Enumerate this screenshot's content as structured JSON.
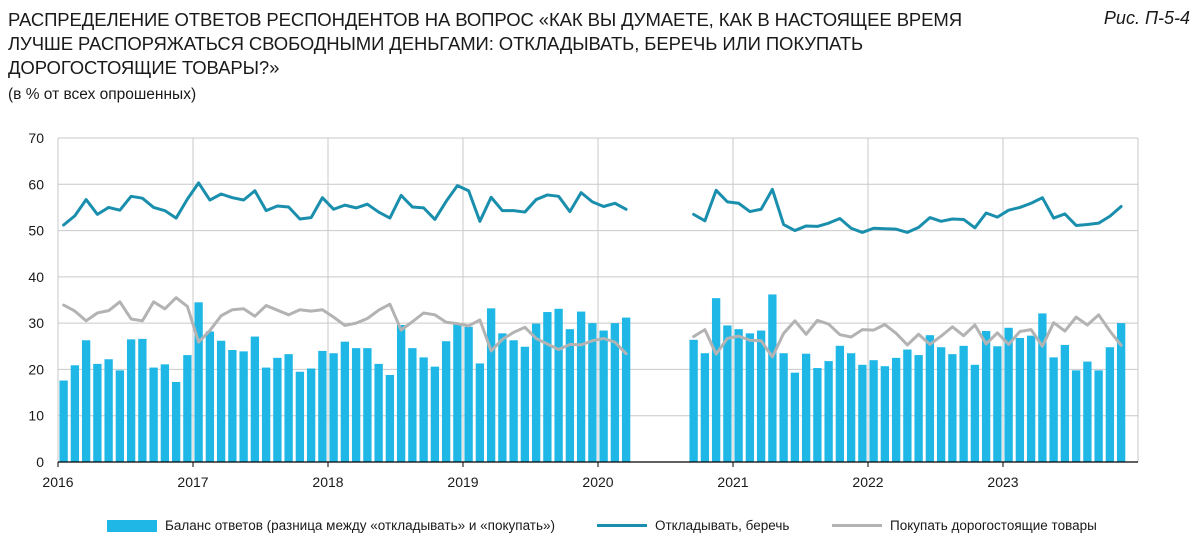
{
  "header": {
    "title": "РАСПРЕДЕЛЕНИЕ ОТВЕТОВ РЕСПОНДЕНТОВ НА ВОПРОС «КАК ВЫ ДУМАЕТЕ, КАК В НАСТОЯЩЕЕ ВРЕМЯ ЛУЧШЕ РАСПОРЯЖАТЬСЯ СВОБОДНЫМИ ДЕНЬГАМИ: ОТКЛАДЫВАТЬ, БЕРЕЧЬ ИЛИ ПОКУПАТЬ ДОРОГОСТОЯЩИЕ ТОВАРЫ?»",
    "subtitle": "(в % от всех опрошенных)",
    "figure_ref": "Рис. П-5-4"
  },
  "colors": {
    "bars": "#1fb8e6",
    "save_line": "#1a8fad",
    "buy_line": "#b3b3b3",
    "grid": "#c9c9c9",
    "axis": "#000000"
  },
  "chart_data": {
    "type": "bar+line",
    "ylim": [
      0,
      70
    ],
    "yticks": [
      0,
      10,
      20,
      30,
      40,
      50,
      60,
      70
    ],
    "x_axis_labels": [
      "2016",
      "2017",
      "2018",
      "2019",
      "2020",
      "2021",
      "2022",
      "2023"
    ],
    "x_axis_start": "2016-01",
    "x_axis_months": 96,
    "segments": [
      {
        "start": "2016-01",
        "series": [
          {
            "name": "Баланс ответов (разница между «откладывать» и «покупать»)",
            "kind": "bar",
            "values": [
              17.6,
              20.9,
              26.3,
              21.2,
              22.2,
              19.8,
              26.5,
              26.6,
              20.4,
              21.1,
              17.3,
              23.1,
              34.5,
              28.2,
              26.2,
              24.2,
              23.9,
              27.1,
              20.4,
              22.5,
              23.3,
              19.5,
              20.2,
              24.0,
              23.5,
              26.0,
              24.6,
              24.6,
              21.2,
              18.8,
              29.6,
              24.6,
              22.6,
              20.6,
              26.1,
              29.8,
              29.2,
              21.3,
              33.2,
              27.8,
              26.3,
              24.9,
              29.9,
              32.4,
              33.1,
              28.7,
              32.5,
              30.0,
              28.4,
              30.0,
              31.2
            ]
          },
          {
            "name": "Откладывать, беречь",
            "kind": "line",
            "values": [
              51.2,
              53.2,
              56.7,
              53.5,
              55.0,
              54.4,
              57.4,
              57.0,
              55.0,
              54.3,
              52.7,
              56.8,
              60.3,
              56.6,
              57.9,
              57.1,
              56.6,
              58.6,
              54.3,
              55.3,
              55.1,
              52.5,
              52.8,
              57.1,
              54.6,
              55.5,
              54.9,
              55.7,
              54.0,
              52.7,
              57.6,
              55.1,
              54.9,
              52.4,
              56.3,
              59.7,
              58.6,
              52.0,
              57.2,
              54.3,
              54.3,
              54.0,
              56.7,
              57.7,
              57.4,
              54.1,
              58.2,
              56.2,
              55.2,
              55.9,
              54.6
            ]
          },
          {
            "name": "Покупать дорогостоящие товары",
            "kind": "line",
            "values": [
              33.9,
              32.6,
              30.5,
              32.2,
              32.7,
              34.6,
              30.9,
              30.5,
              34.6,
              33.1,
              35.5,
              33.6,
              25.9,
              28.4,
              31.6,
              32.9,
              33.1,
              31.5,
              33.8,
              32.8,
              31.8,
              32.9,
              32.6,
              32.9,
              31.3,
              29.5,
              30.0,
              31.0,
              32.8,
              34.1,
              28.5,
              30.3,
              32.2,
              31.8,
              30.2,
              29.9,
              29.4,
              30.7,
              24.0,
              26.5,
              28.0,
              29.1,
              26.7,
              25.5,
              24.3,
              25.4,
              25.3,
              26.2,
              26.7,
              25.9,
              23.4
            ]
          }
        ]
      },
      {
        "start": "2020-09",
        "series": [
          {
            "name": "Баланс ответов (разница между «откладывать» и «покупать»)",
            "kind": "bar",
            "values": [
              26.4,
              23.5,
              35.4,
              29.5,
              28.7,
              27.8,
              28.4,
              36.2,
              23.5,
              19.3,
              23.4,
              20.3,
              21.8,
              25.1,
              23.5,
              21.0,
              22.0,
              20.7,
              22.5,
              24.3,
              23.1,
              27.4,
              24.8,
              23.3,
              25.1,
              21.0,
              28.3,
              25.0,
              29.0,
              26.8,
              27.3,
              32.1,
              22.6,
              25.3,
              19.8,
              21.7,
              19.8,
              24.8,
              30.0
            ]
          },
          {
            "name": "Откладывать, беречь",
            "kind": "line",
            "values": [
              53.5,
              52.1,
              58.7,
              56.2,
              55.9,
              54.1,
              54.6,
              58.9,
              51.3,
              50.0,
              51.0,
              50.9,
              51.6,
              52.6,
              50.5,
              49.6,
              50.5,
              50.4,
              50.3,
              49.6,
              50.7,
              52.8,
              52.0,
              52.5,
              52.4,
              50.6,
              53.8,
              52.9,
              54.4,
              55.0,
              55.9,
              57.1,
              52.7,
              53.6,
              51.1,
              51.3,
              51.6,
              53.1,
              55.2
            ]
          },
          {
            "name": "Покупать дорогостоящие товары",
            "kind": "line",
            "values": [
              27.1,
              28.6,
              23.3,
              26.7,
              27.2,
              26.3,
              26.2,
              22.7,
              27.8,
              30.5,
              27.6,
              30.6,
              29.8,
              27.5,
              27.0,
              28.6,
              28.5,
              29.7,
              27.8,
              25.3,
              27.6,
              25.4,
              27.2,
              29.2,
              27.3,
              29.6,
              25.5,
              27.9,
              25.4,
              28.2,
              28.6,
              25.0,
              30.1,
              28.3,
              31.3,
              29.6,
              31.8,
              28.3,
              25.2
            ]
          }
        ]
      }
    ]
  },
  "legend": {
    "bars_label": "Баланс ответов (разница между «откладывать» и «покупать»)",
    "save_label": "Откладывать, беречь",
    "buy_label": "Покупать дорогостоящие товары"
  }
}
